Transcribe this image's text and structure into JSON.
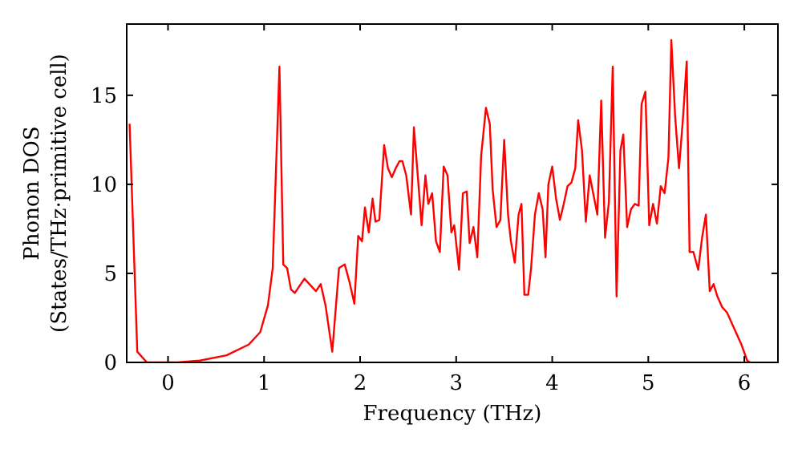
{
  "chart_data": {
    "type": "line",
    "xlabel": "Frequency (THz)",
    "ylabel": "Phonon DOS\n(States/THz·primitive cell)",
    "xlim": [
      -0.43,
      6.35
    ],
    "ylim": [
      0,
      19
    ],
    "xticks": [
      0,
      1,
      2,
      3,
      4,
      5,
      6
    ],
    "yticks": [
      0,
      5,
      10,
      15
    ],
    "grid": false,
    "marker": "none",
    "line_style": "solid",
    "series": [
      {
        "color": "#ff0000",
        "x": [
          -0.4,
          -0.32,
          -0.22,
          0.1,
          0.33,
          0.61,
          0.84,
          0.96,
          1.04,
          1.09,
          1.16,
          1.2,
          1.24,
          1.28,
          1.32,
          1.42,
          1.54,
          1.59,
          1.64,
          1.71,
          1.78,
          1.84,
          1.89,
          1.94,
          1.98,
          2.02,
          2.05,
          2.09,
          2.13,
          2.16,
          2.2,
          2.25,
          2.29,
          2.33,
          2.37,
          2.41,
          2.44,
          2.48,
          2.53,
          2.56,
          2.6,
          2.64,
          2.68,
          2.71,
          2.75,
          2.79,
          2.83,
          2.87,
          2.91,
          2.95,
          2.98,
          3.03,
          3.07,
          3.11,
          3.14,
          3.18,
          3.22,
          3.26,
          3.31,
          3.35,
          3.38,
          3.42,
          3.46,
          3.5,
          3.54,
          3.57,
          3.61,
          3.65,
          3.68,
          3.71,
          3.75,
          3.78,
          3.82,
          3.86,
          3.9,
          3.93,
          3.96,
          4.0,
          4.04,
          4.08,
          4.12,
          4.16,
          4.2,
          4.24,
          4.27,
          4.31,
          4.35,
          4.39,
          4.43,
          4.47,
          4.51,
          4.55,
          4.59,
          4.63,
          4.67,
          4.71,
          4.74,
          4.78,
          4.82,
          4.86,
          4.9,
          4.93,
          4.97,
          5.01,
          5.05,
          5.09,
          5.13,
          5.17,
          5.21,
          5.24,
          5.28,
          5.32,
          5.36,
          5.4,
          5.43,
          5.47,
          5.52,
          5.56,
          5.6,
          5.64,
          5.68,
          5.72,
          5.77,
          5.82,
          5.87,
          5.92,
          5.97,
          6.03,
          6.06
        ],
        "values": [
          13.4,
          0.6,
          0,
          0,
          0.1,
          0.4,
          1.0,
          1.7,
          3.2,
          5.3,
          16.6,
          5.5,
          5.3,
          4.1,
          3.9,
          4.7,
          4.0,
          4.4,
          3.2,
          0.6,
          5.3,
          5.5,
          4.5,
          3.3,
          7.1,
          6.8,
          8.7,
          7.3,
          9.2,
          7.9,
          8.0,
          12.2,
          10.9,
          10.4,
          10.9,
          11.3,
          11.3,
          10.5,
          8.3,
          13.2,
          10.5,
          7.7,
          10.5,
          8.9,
          9.5,
          6.8,
          6.2,
          11.0,
          10.5,
          7.3,
          7.7,
          5.2,
          9.5,
          9.6,
          6.7,
          7.6,
          5.9,
          11.6,
          14.3,
          13.4,
          9.7,
          7.6,
          8.0,
          12.5,
          8.3,
          6.8,
          5.6,
          8.3,
          8.9,
          3.8,
          3.8,
          5.3,
          8.3,
          9.5,
          8.6,
          5.9,
          10.0,
          11.0,
          9.2,
          8.0,
          8.9,
          9.9,
          10.1,
          10.9,
          13.6,
          11.9,
          7.9,
          10.5,
          9.4,
          8.3,
          14.7,
          7.0,
          9.0,
          16.6,
          3.7,
          11.9,
          12.8,
          7.6,
          8.6,
          8.9,
          8.8,
          14.5,
          15.2,
          7.7,
          8.9,
          7.8,
          9.9,
          9.5,
          11.5,
          18.1,
          13.8,
          10.9,
          13.6,
          16.9,
          6.2,
          6.2,
          5.2,
          7.0,
          8.3,
          4.0,
          4.4,
          3.7,
          3.1,
          2.8,
          2.2,
          1.6,
          1.0,
          0.1,
          0
        ]
      }
    ]
  }
}
